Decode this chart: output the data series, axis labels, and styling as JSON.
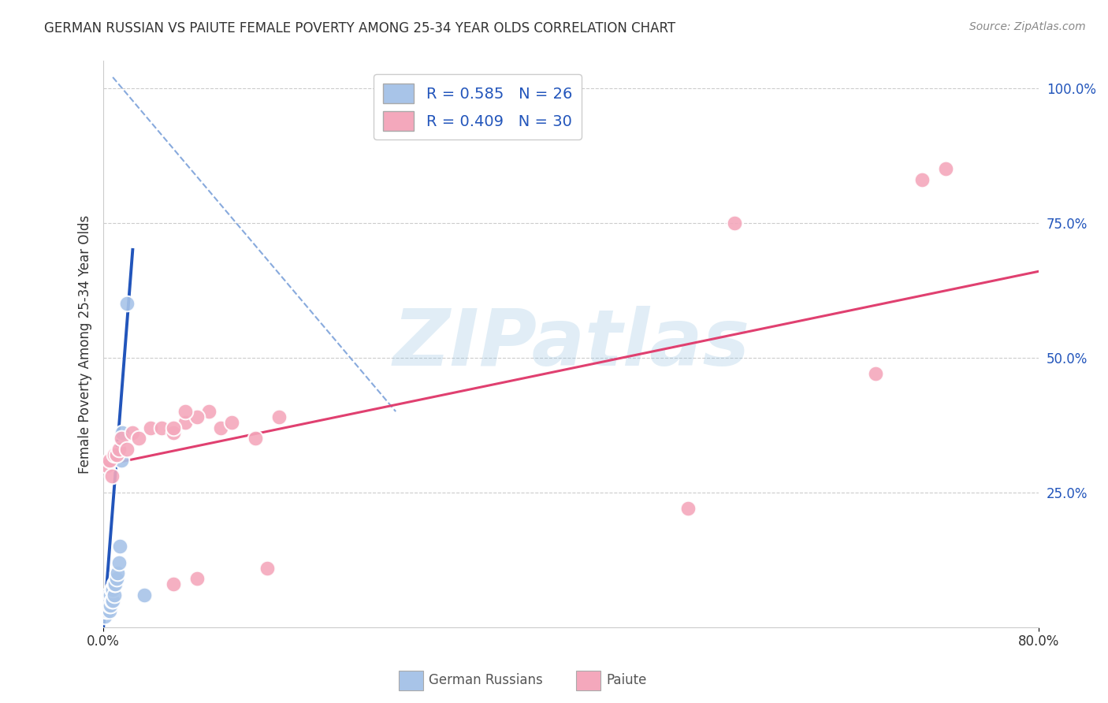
{
  "title": "GERMAN RUSSIAN VS PAIUTE FEMALE POVERTY AMONG 25-34 YEAR OLDS CORRELATION CHART",
  "source": "Source: ZipAtlas.com",
  "ylabel": "Female Poverty Among 25-34 Year Olds",
  "xlim": [
    0.0,
    0.8
  ],
  "ylim": [
    0.0,
    1.05
  ],
  "xticks": [
    0.0,
    0.8
  ],
  "xtick_labels": [
    "0.0%",
    "80.0%"
  ],
  "yticks": [
    0.25,
    0.5,
    0.75,
    1.0
  ],
  "ytick_labels": [
    "25.0%",
    "50.0%",
    "75.0%",
    "100.0%"
  ],
  "legend_entry1": "R = 0.585   N = 26",
  "legend_entry2": "R = 0.409   N = 30",
  "background_color": "#ffffff",
  "watermark": "ZIPatlas",
  "german_russian_color": "#a8c4e8",
  "paiute_color": "#f4a8bc",
  "german_russian_line_color": "#2255bb",
  "paiute_line_color": "#e04070",
  "refline_color": "#88aadd",
  "german_russian_x": [
    0.001,
    0.002,
    0.003,
    0.003,
    0.004,
    0.004,
    0.005,
    0.005,
    0.005,
    0.006,
    0.006,
    0.007,
    0.007,
    0.008,
    0.008,
    0.009,
    0.009,
    0.01,
    0.011,
    0.012,
    0.013,
    0.014,
    0.015,
    0.016,
    0.02,
    0.035
  ],
  "german_russian_y": [
    0.02,
    0.03,
    0.03,
    0.05,
    0.04,
    0.06,
    0.03,
    0.04,
    0.05,
    0.04,
    0.06,
    0.05,
    0.07,
    0.05,
    0.07,
    0.06,
    0.08,
    0.08,
    0.09,
    0.1,
    0.12,
    0.15,
    0.31,
    0.36,
    0.6,
    0.06
  ],
  "paiute_x": [
    0.003,
    0.005,
    0.007,
    0.009,
    0.011,
    0.013,
    0.015,
    0.02,
    0.025,
    0.03,
    0.04,
    0.05,
    0.06,
    0.07,
    0.08,
    0.09,
    0.1,
    0.11,
    0.13,
    0.14,
    0.06,
    0.08,
    0.15,
    0.07,
    0.06,
    0.5,
    0.54,
    0.66,
    0.7,
    0.72
  ],
  "paiute_y": [
    0.3,
    0.31,
    0.28,
    0.32,
    0.32,
    0.33,
    0.35,
    0.33,
    0.36,
    0.35,
    0.37,
    0.37,
    0.36,
    0.38,
    0.09,
    0.4,
    0.37,
    0.38,
    0.35,
    0.11,
    0.37,
    0.39,
    0.39,
    0.4,
    0.08,
    0.22,
    0.75,
    0.47,
    0.83,
    0.85
  ],
  "gr_trendline_x": [
    0.0,
    0.025
  ],
  "gr_trendline_y": [
    0.0,
    0.7
  ],
  "paiute_trendline_x": [
    0.0,
    0.8
  ],
  "paiute_trendline_y": [
    0.3,
    0.66
  ],
  "refline_x": [
    0.008,
    0.25
  ],
  "refline_y": [
    1.02,
    0.4
  ],
  "marker_size": 200,
  "marker_linewidth": 1.5
}
